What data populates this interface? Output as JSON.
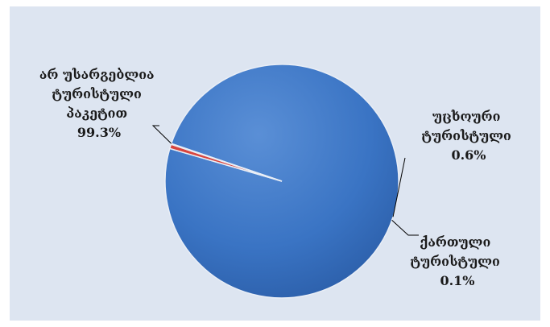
{
  "chart_data": {
    "type": "pie",
    "title": "",
    "colors": {
      "background": "#dde5f1",
      "slice_main": "#3a74c4",
      "slice_accent": "#d8453e"
    },
    "slices": [
      {
        "label_lines": [
          "არ უსარგებლია",
          "ტურისტული",
          "პაკეტით"
        ],
        "value": 99.3,
        "value_label": "99.3%",
        "color": "#3a74c4"
      },
      {
        "label_lines": [
          "უცხოური",
          "ტურისტული"
        ],
        "value": 0.6,
        "value_label": "0.6%",
        "color": "#d8453e"
      },
      {
        "label_lines": [
          "ქართული",
          "ტურისტული"
        ],
        "value": 0.1,
        "value_label": "0.1%",
        "color": "#3a74c4"
      }
    ]
  }
}
